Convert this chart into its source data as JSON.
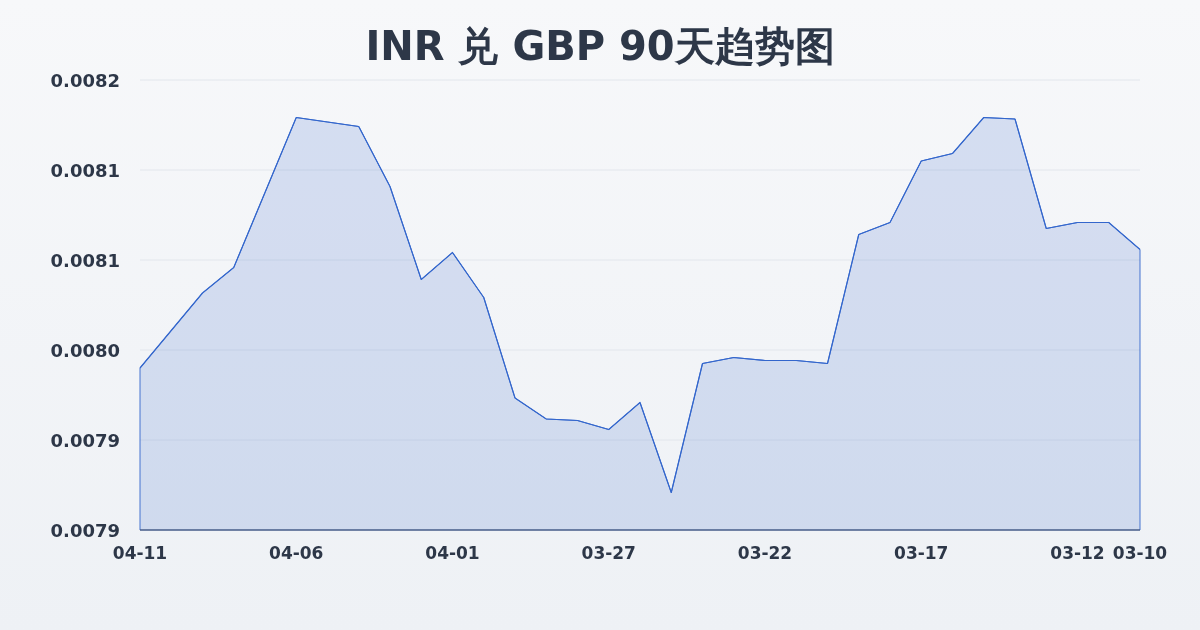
{
  "chart_data": {
    "type": "area",
    "title": "INR 兑 GBP 90天趋势图",
    "categories": [
      "04-11",
      null,
      null,
      null,
      null,
      "04-06",
      null,
      null,
      null,
      null,
      "04-01",
      null,
      null,
      null,
      null,
      "03-27",
      null,
      null,
      null,
      null,
      "03-22",
      null,
      null,
      null,
      null,
      "03-17",
      null,
      null,
      null,
      null,
      "03-12",
      null,
      "03-10"
    ],
    "values": [
      0.007988,
      0.008013,
      0.008038,
      0.008055,
      0.008105,
      0.008155,
      0.008152,
      0.008149,
      0.008109,
      0.008047,
      0.008065,
      0.008035,
      0.007968,
      0.007954,
      0.007953,
      0.007947,
      0.007965,
      0.007905,
      0.007991,
      0.007995,
      0.007993,
      0.007993,
      0.007991,
      0.008077,
      0.008085,
      0.008126,
      0.008131,
      0.008155,
      0.008154,
      0.008081,
      0.008085,
      0.008085,
      0.008067
    ],
    "color": "#3366cc",
    "ylim": [
      0.00788,
      0.00818
    ],
    "yticks": [
      {
        "value": 0.00788,
        "label": "0.0079"
      },
      {
        "value": 0.00794,
        "label": "0.0079"
      },
      {
        "value": 0.008,
        "label": "0.0080"
      },
      {
        "value": 0.00806,
        "label": "0.0081"
      },
      {
        "value": 0.00812,
        "label": "0.0081"
      },
      {
        "value": 0.00818,
        "label": "0.0082"
      }
    ],
    "grid": "y"
  }
}
